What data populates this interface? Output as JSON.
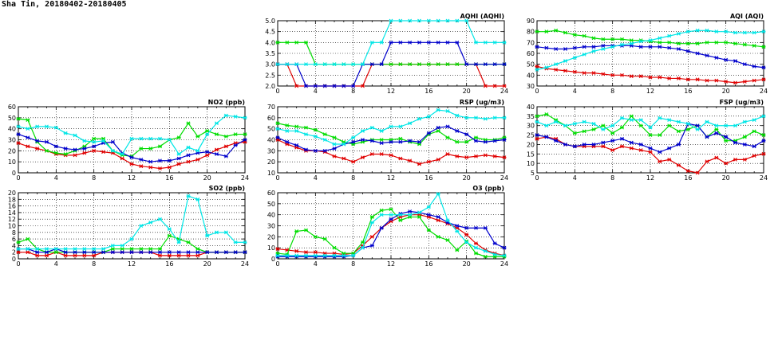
{
  "page_title": "Sha Tin, 20180402-20180405",
  "colors": {
    "red": "#e00000",
    "green": "#00dd00",
    "blue": "#0000cc",
    "cyan": "#00e6e6"
  },
  "chart_data": [
    {
      "id": "aqhi",
      "type": "line",
      "title": "AQHI (AQHI)",
      "xlim": [
        0,
        24
      ],
      "xticks": [
        0,
        4,
        8,
        12,
        16,
        20,
        24
      ],
      "ylim": [
        2.0,
        5.0
      ],
      "yticks": [
        "2.0",
        "2.5",
        "3.0",
        "3.5",
        "4.0",
        "4.5",
        "5.0"
      ],
      "grid": true,
      "series": [
        {
          "color": "red",
          "values": [
            3,
            3,
            2,
            2,
            2,
            2,
            2,
            2,
            2,
            2,
            3,
            3,
            3,
            3,
            3,
            3,
            3,
            3,
            3,
            3,
            3,
            3,
            2,
            2,
            2
          ]
        },
        {
          "color": "green",
          "values": [
            4,
            4,
            4,
            4,
            3,
            3,
            3,
            3,
            3,
            3,
            3,
            3,
            3,
            3,
            3,
            3,
            3,
            3,
            3,
            3,
            3,
            3,
            3,
            3,
            3
          ]
        },
        {
          "color": "blue",
          "values": [
            3,
            3,
            3,
            2,
            2,
            2,
            2,
            2,
            2,
            3,
            3,
            3,
            4,
            4,
            4,
            4,
            4,
            4,
            4,
            4,
            3,
            3,
            3,
            3,
            3
          ]
        },
        {
          "color": "cyan",
          "values": [
            3,
            3,
            3,
            3,
            3,
            3,
            3,
            3,
            3,
            3,
            4,
            4,
            5,
            5,
            5,
            5,
            5,
            5,
            5,
            5,
            5,
            4,
            4,
            4,
            4
          ]
        }
      ]
    },
    {
      "id": "aqi",
      "type": "line",
      "title": "AQI (AQI)",
      "xlim": [
        0,
        24
      ],
      "xticks": [
        0,
        4,
        8,
        12,
        16,
        20,
        24
      ],
      "ylim": [
        30,
        90
      ],
      "yticks": [
        "30",
        "40",
        "50",
        "60",
        "70",
        "80",
        "90"
      ],
      "grid": true,
      "series": [
        {
          "color": "red",
          "values": [
            48,
            46,
            45,
            44,
            43,
            42,
            42,
            41,
            40,
            40,
            39,
            39,
            38,
            38,
            37,
            37,
            36,
            36,
            35,
            35,
            34,
            33,
            34,
            35,
            36
          ]
        },
        {
          "color": "green",
          "values": [
            80,
            80,
            81,
            79,
            77,
            76,
            74,
            73,
            73,
            73,
            72,
            72,
            71,
            70,
            70,
            69,
            69,
            69,
            70,
            70,
            70,
            69,
            68,
            67,
            66
          ]
        },
        {
          "color": "blue",
          "values": [
            66,
            65,
            64,
            64,
            65,
            66,
            66,
            67,
            67,
            67,
            67,
            66,
            66,
            66,
            65,
            64,
            62,
            60,
            58,
            56,
            54,
            53,
            50,
            48,
            47
          ]
        },
        {
          "color": "cyan",
          "values": [
            45,
            47,
            50,
            53,
            56,
            59,
            62,
            64,
            66,
            68,
            69,
            71,
            72,
            74,
            76,
            78,
            80,
            81,
            81,
            80,
            80,
            79,
            79,
            79,
            80
          ]
        }
      ]
    },
    {
      "id": "no2",
      "type": "line",
      "title": "NO2 (ppb)",
      "xlim": [
        0,
        24
      ],
      "xticks": [
        0,
        4,
        8,
        12,
        16,
        20,
        24
      ],
      "ylim": [
        0,
        60
      ],
      "yticks": [
        "0",
        "10",
        "20",
        "30",
        "40",
        "50",
        "60"
      ],
      "grid": true,
      "series": [
        {
          "color": "red",
          "values": [
            27,
            24,
            22,
            20,
            17,
            16,
            16,
            18,
            20,
            19,
            18,
            13,
            8,
            6,
            5,
            4,
            5,
            8,
            10,
            12,
            16,
            21,
            24,
            27,
            28
          ]
        },
        {
          "color": "green",
          "values": [
            49,
            48,
            28,
            20,
            18,
            17,
            20,
            24,
            31,
            31,
            20,
            16,
            15,
            22,
            22,
            24,
            30,
            32,
            45,
            33,
            38,
            35,
            33,
            35,
            35
          ]
        },
        {
          "color": "blue",
          "values": [
            35,
            32,
            29,
            28,
            24,
            22,
            21,
            22,
            24,
            27,
            28,
            18,
            14,
            12,
            10,
            11,
            11,
            13,
            16,
            18,
            19,
            17,
            15,
            25,
            30
          ]
        },
        {
          "color": "cyan",
          "values": [
            42,
            40,
            42,
            42,
            41,
            36,
            34,
            29,
            28,
            29,
            20,
            17,
            31,
            31,
            31,
            31,
            30,
            17,
            23,
            20,
            35,
            45,
            52,
            51,
            50
          ]
        }
      ]
    },
    {
      "id": "rsp",
      "type": "line",
      "title": "RSP (ug/m3)",
      "xlim": [
        0,
        24
      ],
      "xticks": [
        0,
        4,
        8,
        12,
        16,
        20,
        24
      ],
      "ylim": [
        10,
        70
      ],
      "yticks": [
        "10",
        "20",
        "30",
        "40",
        "50",
        "60",
        "70"
      ],
      "grid": true,
      "series": [
        {
          "color": "red",
          "values": [
            40,
            36,
            33,
            30,
            30,
            29,
            25,
            23,
            20,
            24,
            27,
            27,
            26,
            23,
            21,
            18,
            20,
            22,
            27,
            25,
            24,
            25,
            26,
            25,
            24
          ]
        },
        {
          "color": "green",
          "values": [
            55,
            53,
            52,
            51,
            49,
            45,
            42,
            38,
            36,
            38,
            40,
            40,
            40,
            41,
            38,
            36,
            45,
            48,
            42,
            38,
            38,
            42,
            40,
            40,
            42
          ]
        },
        {
          "color": "blue",
          "values": [
            42,
            38,
            35,
            31,
            30,
            30,
            32,
            36,
            38,
            40,
            39,
            37,
            38,
            38,
            39,
            38,
            46,
            51,
            52,
            48,
            45,
            39,
            38,
            39,
            40
          ]
        },
        {
          "color": "cyan",
          "values": [
            50,
            48,
            48,
            45,
            43,
            40,
            36,
            36,
            42,
            48,
            51,
            48,
            52,
            52,
            55,
            59,
            61,
            67,
            66,
            62,
            60,
            60,
            59,
            60,
            60
          ]
        }
      ]
    },
    {
      "id": "fsp",
      "type": "line",
      "title": "FSP (ug/m3)",
      "xlim": [
        0,
        24
      ],
      "xticks": [
        0,
        4,
        8,
        12,
        16,
        20,
        24
      ],
      "ylim": [
        5,
        40
      ],
      "yticks": [
        "5",
        "10",
        "15",
        "20",
        "25",
        "30",
        "35",
        "40"
      ],
      "grid": true,
      "series": [
        {
          "color": "red",
          "values": [
            23,
            24,
            23,
            20,
            19,
            19,
            19,
            19,
            17,
            19,
            18,
            17,
            16,
            11,
            12,
            9,
            6,
            5,
            11,
            13,
            10,
            12,
            12,
            14,
            15
          ]
        },
        {
          "color": "green",
          "values": [
            35,
            36,
            33,
            30,
            26,
            27,
            28,
            30,
            26,
            29,
            35,
            30,
            25,
            25,
            30,
            27,
            28,
            30,
            24,
            28,
            22,
            22,
            24,
            27,
            25
          ]
        },
        {
          "color": "blue",
          "values": [
            25,
            24,
            22,
            20,
            19,
            20,
            20,
            21,
            22,
            23,
            21,
            20,
            18,
            16,
            18,
            20,
            31,
            30,
            24,
            26,
            24,
            21,
            20,
            19,
            22
          ]
        },
        {
          "color": "cyan",
          "values": [
            32,
            30,
            32,
            30,
            31,
            32,
            31,
            28,
            30,
            34,
            33,
            33,
            29,
            34,
            33,
            32,
            31,
            28,
            32,
            30,
            30,
            30,
            32,
            33,
            35
          ]
        }
      ]
    },
    {
      "id": "so2",
      "type": "line",
      "title": "SO2 (ppb)",
      "xlim": [
        0,
        24
      ],
      "xticks": [
        0,
        4,
        8,
        12,
        16,
        20,
        24
      ],
      "ylim": [
        0,
        20
      ],
      "yticks": [
        "0",
        "2",
        "4",
        "6",
        "8",
        "10",
        "12",
        "14",
        "16",
        "18",
        "20"
      ],
      "grid": true,
      "series": [
        {
          "color": "red",
          "values": [
            2,
            2,
            1,
            1,
            2,
            1,
            1,
            1,
            1,
            2,
            2,
            2,
            2,
            2,
            2,
            1,
            1,
            1,
            1,
            1,
            2,
            2,
            2,
            2,
            2
          ]
        },
        {
          "color": "green",
          "values": [
            5,
            6,
            3,
            2,
            2,
            2,
            2,
            2,
            2,
            2,
            3,
            3,
            3,
            3,
            3,
            3,
            7,
            6,
            5,
            3,
            2,
            2,
            2,
            2,
            2
          ]
        },
        {
          "color": "blue",
          "values": [
            3,
            3,
            2,
            2,
            3,
            2,
            2,
            2,
            2,
            2,
            2,
            2,
            2,
            2,
            2,
            2,
            2,
            2,
            2,
            2,
            2,
            2,
            2,
            2,
            2
          ]
        },
        {
          "color": "cyan",
          "values": [
            3,
            3,
            3,
            3,
            3,
            3,
            3,
            3,
            3,
            3,
            4,
            4,
            6,
            10,
            11,
            12,
            9,
            5,
            19,
            18,
            7,
            8,
            8,
            5,
            5
          ]
        }
      ]
    },
    {
      "id": "o3",
      "type": "line",
      "title": "O3 (ppb)",
      "xlim": [
        0,
        24
      ],
      "xticks": [
        0,
        4,
        8,
        12,
        16,
        20,
        24
      ],
      "ylim": [
        0,
        60
      ],
      "yticks": [
        "0",
        "10",
        "20",
        "30",
        "40",
        "50",
        "60"
      ],
      "grid": true,
      "series": [
        {
          "color": "red",
          "values": [
            9,
            8,
            7,
            6,
            6,
            5,
            5,
            4,
            5,
            12,
            20,
            28,
            34,
            38,
            40,
            40,
            38,
            35,
            32,
            28,
            22,
            14,
            8,
            5,
            3
          ]
        },
        {
          "color": "green",
          "values": [
            5,
            4,
            25,
            26,
            20,
            18,
            10,
            5,
            5,
            15,
            38,
            44,
            45,
            35,
            38,
            38,
            26,
            20,
            17,
            8,
            16,
            5,
            2,
            2,
            2
          ]
        },
        {
          "color": "blue",
          "values": [
            2,
            2,
            2,
            2,
            2,
            2,
            2,
            2,
            3,
            10,
            12,
            28,
            36,
            41,
            43,
            42,
            40,
            38,
            33,
            30,
            28,
            28,
            28,
            14,
            10
          ]
        },
        {
          "color": "cyan",
          "values": [
            3,
            3,
            3,
            3,
            3,
            3,
            3,
            3,
            3,
            10,
            33,
            40,
            40,
            40,
            40,
            42,
            47,
            59,
            35,
            25,
            15,
            10,
            7,
            4,
            3
          ]
        }
      ]
    }
  ]
}
